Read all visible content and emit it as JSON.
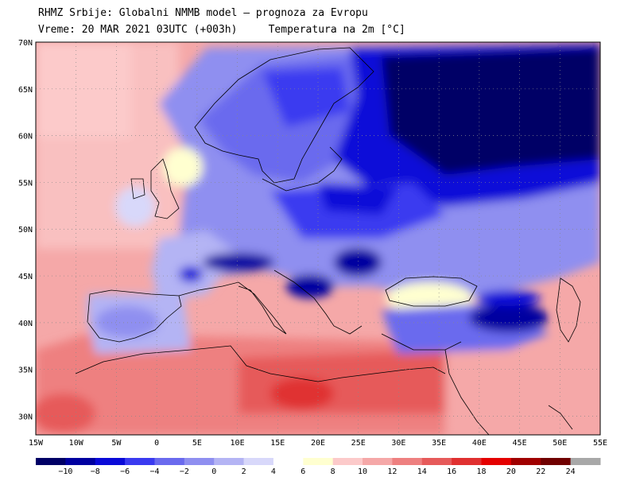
{
  "header": {
    "line1": "RHMZ Srbije: Globalni NMMB model — prognoza za Evropu",
    "line2_time": "Vreme: 20 MAR 2021 03UTC (+003h)",
    "line2_field": "Temperatura na 2m [°C]"
  },
  "map": {
    "lon_range": [
      -15,
      55
    ],
    "lat_range": [
      28,
      70
    ],
    "lon_labels": [
      "15W",
      "10W",
      "5W",
      "0",
      "5E",
      "10E",
      "15E",
      "20E",
      "25E",
      "30E",
      "35E",
      "40E",
      "45E",
      "50E",
      "55E"
    ],
    "lat_labels": [
      "70N",
      "65N",
      "60N",
      "55N",
      "50N",
      "45N",
      "40N",
      "35N",
      "30N"
    ]
  },
  "legend": {
    "colors": [
      "#000066",
      "#0000a0",
      "#0a0ad8",
      "#3a3af0",
      "#6a6aee",
      "#8f8ff0",
      "#b4b4f4",
      "#d8d8fa",
      "#ffffff",
      "#ffffd0",
      "#fccaca",
      "#f5a8a8",
      "#ee8080",
      "#e65a5a",
      "#e03030",
      "#e40000",
      "#a00000",
      "#700000",
      "#a8a8a8"
    ],
    "labels": [
      "−10",
      "−8",
      "−6",
      "−4",
      "−2",
      "0",
      "2",
      "4",
      "6",
      "8",
      "10",
      "12",
      "14",
      "16",
      "18",
      "20",
      "22",
      "24"
    ]
  },
  "colors": {
    "cold_deep": "#000066",
    "warm_deep": "#e40000",
    "coast": "#000000"
  }
}
